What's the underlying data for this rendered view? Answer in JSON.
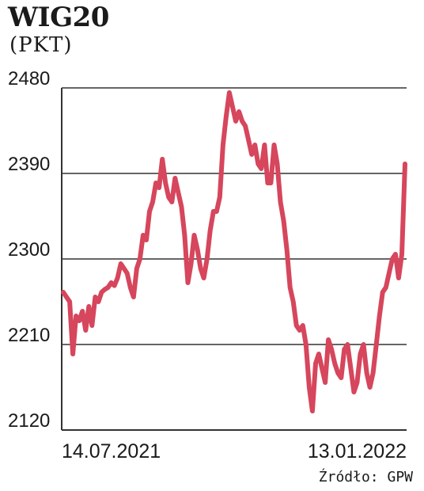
{
  "title": "WIG20",
  "unit": "(PKT)",
  "source": "Źródło: GPW",
  "colors": {
    "line": "#d6465c",
    "grid": "#333333",
    "text": "#1a1a1a"
  },
  "chart_data": {
    "type": "line",
    "title": "WIG20",
    "ylabel": "(PKT)",
    "ylim": [
      2120,
      2480
    ],
    "yticks": [
      2120,
      2210,
      2300,
      2390,
      2480
    ],
    "x_start_label": "14.07.2021",
    "x_end_label": "13.01.2022",
    "grid": true,
    "series": [
      {
        "values": [
          2265,
          2260,
          2255,
          2200,
          2240,
          2235,
          2245,
          2225,
          2250,
          2230,
          2260,
          2255,
          2265,
          2268,
          2270,
          2275,
          2272,
          2280,
          2295,
          2290,
          2285,
          2270,
          2260,
          2290,
          2300,
          2325,
          2320,
          2350,
          2360,
          2380,
          2375,
          2405,
          2380,
          2365,
          2360,
          2385,
          2370,
          2355,
          2325,
          2275,
          2295,
          2325,
          2310,
          2290,
          2280,
          2300,
          2330,
          2350,
          2350,
          2365,
          2420,
          2450,
          2475,
          2460,
          2445,
          2455,
          2445,
          2440,
          2425,
          2410,
          2420,
          2400,
          2395,
          2420,
          2380,
          2380,
          2420,
          2400,
          2360,
          2340,
          2310,
          2270,
          2255,
          2230,
          2225,
          2230,
          2210,
          2165,
          2140,
          2190,
          2200,
          2185,
          2170,
          2215,
          2205,
          2190,
          2180,
          2175,
          2205,
          2210,
          2185,
          2160,
          2170,
          2200,
          2210,
          2180,
          2165,
          2180,
          2210,
          2240,
          2265,
          2270,
          2285,
          2300,
          2305,
          2280,
          2305,
          2400
        ]
      }
    ]
  }
}
